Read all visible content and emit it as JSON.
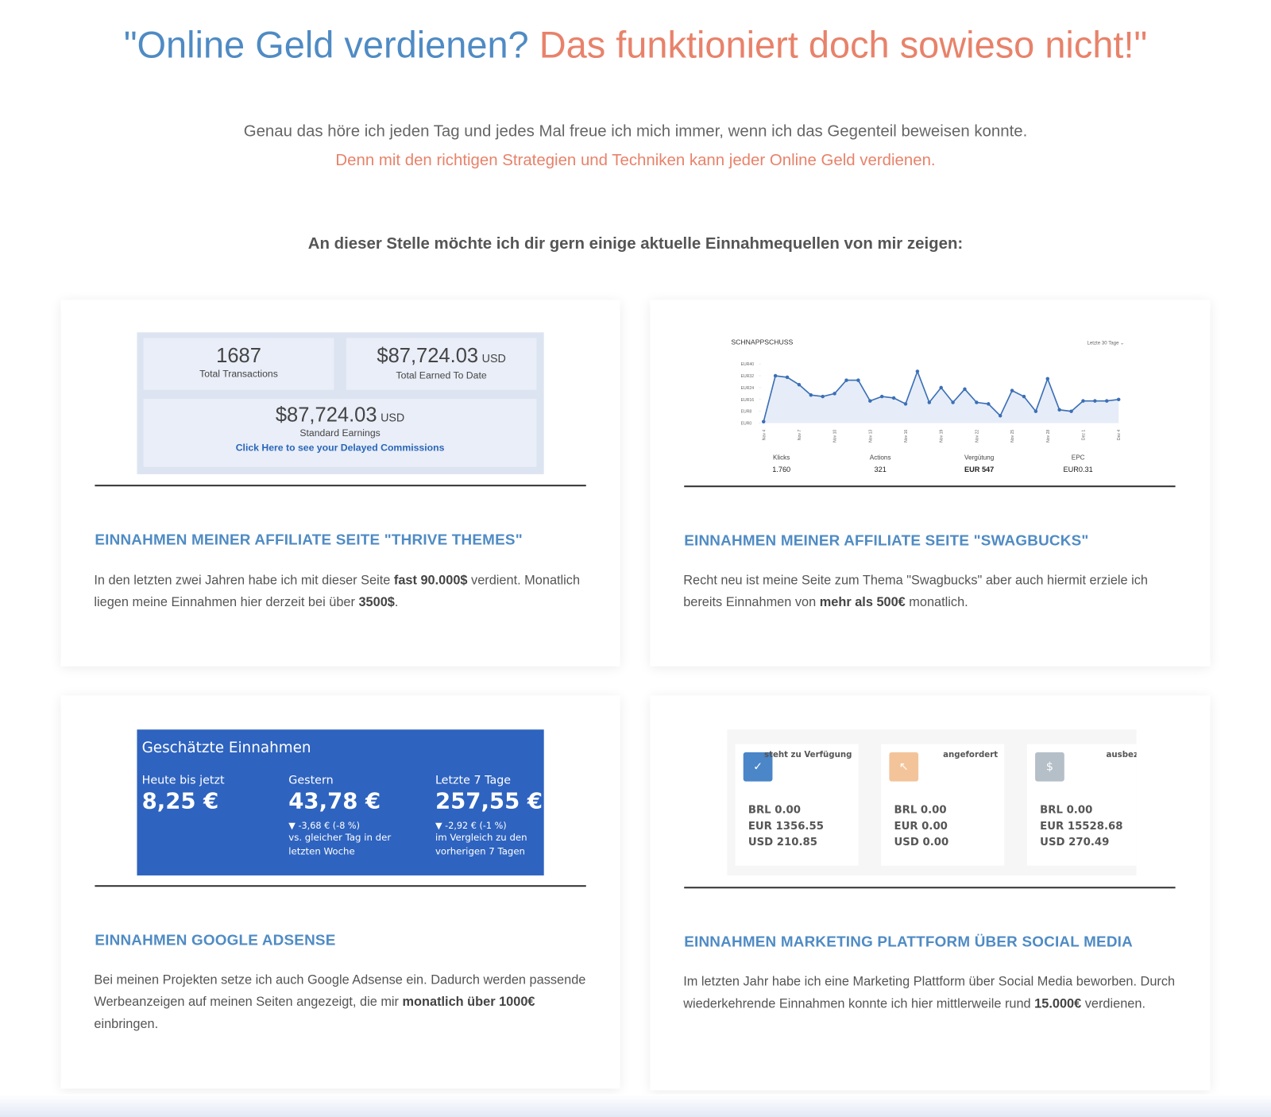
{
  "header": {
    "title_part1": "\"Online Geld verdienen?",
    "title_part2": "Das funktioniert doch sowieso nicht!\""
  },
  "intro": {
    "text": "Genau das höre ich jeden Tag und jedes Mal freue ich mich immer, wenn ich das Gegenteil beweisen konnte.",
    "highlight": "Denn mit den richtigen Strategien und Techniken kann jeder Online Geld verdienen."
  },
  "subheading": "An dieser Stelle möchte ich dir gern einige aktuelle Einnahmequellen von mir zeigen:",
  "cards": [
    {
      "heading": "EINNAHMEN MEINER AFFILIATE SEITE \"THRIVE THEMES\"",
      "body": [
        {
          "text": "In den letzten zwei Jahren habe ich mit dieser Seite "
        },
        {
          "text": "fast 90.000$",
          "bold": true
        },
        {
          "text": " verdient. Monatlich liegen meine Einnahmen hier derzeit bei über "
        },
        {
          "text": "3500$",
          "bold": true
        },
        {
          "text": "."
        }
      ],
      "image": {
        "transactions": "1687",
        "transactions_label": "Total Transactions",
        "total": "$87,724.03",
        "total_unit": "USD",
        "total_label": "Total Earned To Date",
        "standard": "$87,724.03",
        "standard_unit": "USD",
        "standard_label": "Standard Earnings",
        "link": "Click Here to see your Delayed Commissions"
      }
    },
    {
      "heading": "EINNAHMEN MEINER AFFILIATE SEITE \"SWAGBUCKS\"",
      "body": [
        {
          "text": "Recht neu ist meine Seite zum Thema \"Swagbucks\" aber auch hiermit erziele ich bereits Einnahmen von "
        },
        {
          "text": "mehr als 500€",
          "bold": true
        },
        {
          "text": " monatlich."
        }
      ],
      "chart": {
        "type": "line",
        "title": "SCHNAPPSCHUSS",
        "range_label": "Letzte 30 Tage ⌄",
        "color": "#3b6fb6",
        "categories": [
          "Nov 4",
          null,
          null,
          "Nov 7",
          null,
          null,
          "Nov 10",
          null,
          null,
          "Nov 13",
          null,
          null,
          "Nov 16",
          null,
          null,
          "Nov 19",
          null,
          null,
          "Nov 22",
          null,
          null,
          "Nov 25",
          null,
          null,
          "Nov 28",
          null,
          null,
          "Dez 1",
          null,
          null,
          "Dez 4"
        ],
        "values": [
          1,
          32,
          31,
          26,
          19,
          18,
          20,
          29,
          29,
          15,
          18,
          17,
          13,
          35,
          14,
          24,
          14,
          23,
          14,
          13,
          5,
          22,
          18,
          8,
          30,
          9,
          8,
          15,
          15,
          15,
          16
        ],
        "ylim": [
          0,
          40
        ],
        "yticks": [
          {
            "value": 0,
            "label": "EUR0"
          },
          {
            "value": 8,
            "label": "EUR8"
          },
          {
            "value": 16,
            "label": "EUR16"
          },
          {
            "value": 24,
            "label": "EUR24"
          },
          {
            "value": 32,
            "label": "EUR32"
          },
          {
            "value": 40,
            "label": "EUR40"
          }
        ],
        "stats": [
          {
            "label": "Klicks",
            "value": "1.760"
          },
          {
            "label": "Actions",
            "value": "321"
          },
          {
            "label": "Vergütung",
            "value": "EUR 547"
          },
          {
            "label": "EPC",
            "value": "EUR0.31"
          }
        ]
      }
    },
    {
      "heading": "EINNAHMEN GOOGLE ADSENSE",
      "body": [
        {
          "text": "Bei meinen Projekten setze ich auch Google Adsense ein. Dadurch werden passende Werbeanzeigen auf meinen Seiten angezeigt, die mir "
        },
        {
          "text": "monatlich über 1000€",
          "bold": true
        },
        {
          "text": " einbringen."
        }
      ],
      "image": {
        "title": "Geschätzte Einnahmen",
        "columns": [
          {
            "label": "Heute bis jetzt",
            "value": "8,25 €"
          },
          {
            "label": "Gestern",
            "value": "43,78 €",
            "change": "▼ -3,68 € (-8 %)",
            "note": "vs. gleicher Tag in der letzten Woche"
          },
          {
            "label": "Letzte 7 Tage",
            "value": "257,55 €",
            "change": "▼ -2,92 € (-1 %)",
            "note": "im Vergleich zu den vorherigen 7 Tagen"
          }
        ]
      }
    },
    {
      "heading": "EINNAHMEN MARKETING PLATTFORM ÜBER SOCIAL MEDIA",
      "body": [
        {
          "text": "Im letzten Jahr habe ich eine Marketing Plattform über Social Media beworben. Durch wiederkehrende Einnahmen konnte ich hier mittlerweile rund "
        },
        {
          "text": "15.000€",
          "bold": true
        },
        {
          "text": " verdienen."
        }
      ],
      "image": {
        "boxes": [
          {
            "label": "steht zu Verfügung",
            "lines": [
              "BRL 0.00",
              "EUR 1356.55",
              "USD 210.85"
            ]
          },
          {
            "label": "angefordert",
            "lines": [
              "BRL 0.00",
              "EUR 0.00",
              "USD 0.00"
            ]
          },
          {
            "label": "ausbeza",
            "lines": [
              "BRL 0.00",
              "EUR 15528.68",
              "USD 270.49"
            ]
          }
        ]
      }
    }
  ]
}
